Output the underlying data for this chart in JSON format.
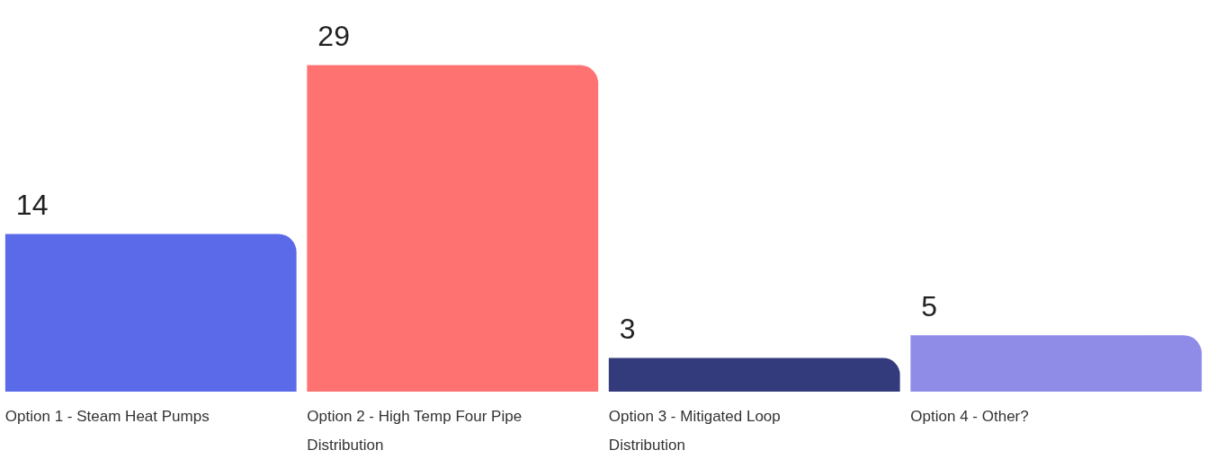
{
  "chart_data": {
    "type": "bar",
    "categories": [
      "Option 1 - Steam Heat Pumps",
      "Option 2 - High Temp Four Pipe Distribution",
      "Option 3 - Mitigated Loop Distribution",
      "Option 4 - Other?"
    ],
    "values": [
      14,
      29,
      3,
      5
    ],
    "colors": [
      "#5a6ae8",
      "#ff7272",
      "#333b7c",
      "#8f8ce8"
    ],
    "data_labels": true
  }
}
